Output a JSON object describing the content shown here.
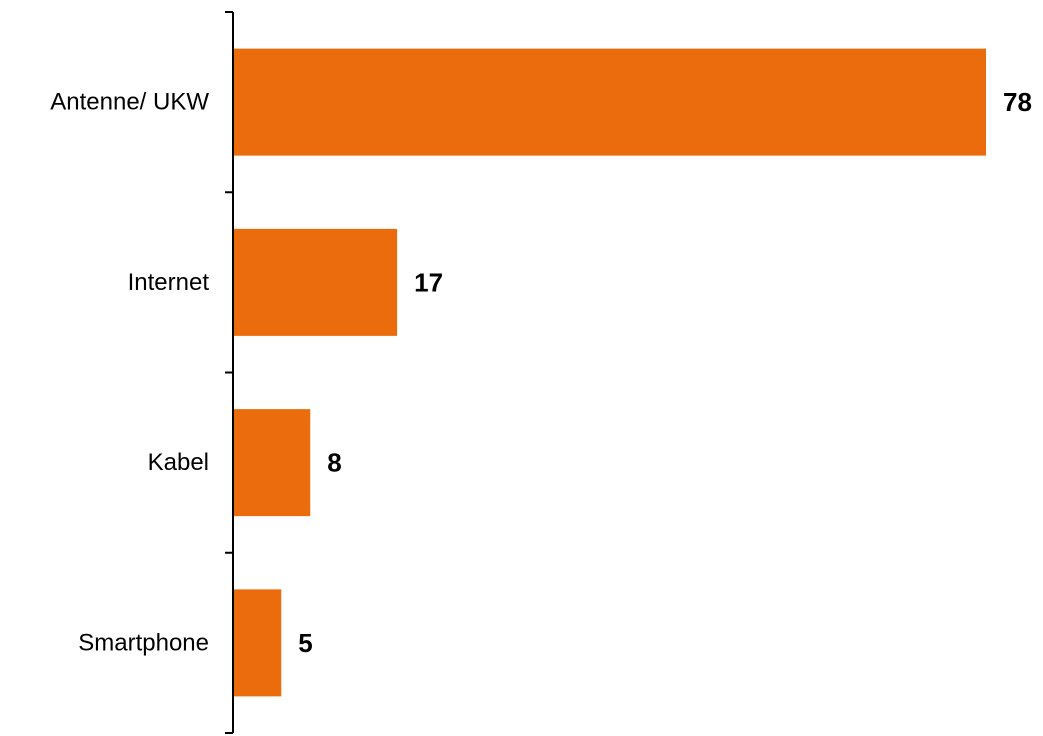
{
  "colors": {
    "bar": "#EA6C0C",
    "axis": "#000000"
  },
  "chart_data": {
    "type": "bar",
    "orientation": "horizontal",
    "categories": [
      "Antenne/ UKW",
      "Internet",
      "Kabel",
      "Smartphone"
    ],
    "values": [
      78,
      17,
      8,
      5
    ],
    "title": "",
    "xlabel": "",
    "ylabel": "",
    "xlim": [
      0,
      78
    ],
    "grid": false,
    "legend": "none"
  }
}
